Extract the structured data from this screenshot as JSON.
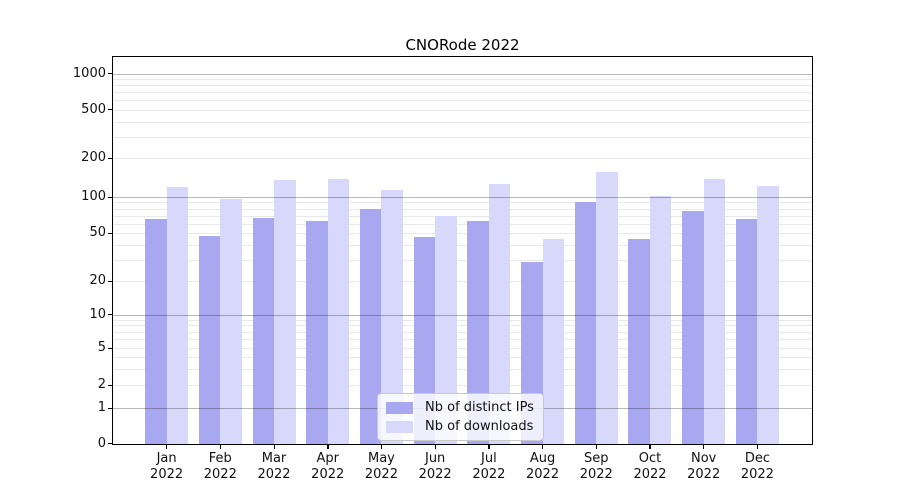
{
  "title": "CNORode 2022",
  "colors": {
    "bar_distinct_ips": "#a8a8f0",
    "bar_downloads": "#d8d8fa",
    "grid_major": "rgba(0,0,0,0.28)",
    "grid_minor": "rgba(0,0,0,0.085)"
  },
  "chart_data": {
    "type": "bar",
    "title": "CNORode 2022",
    "categories": [
      "Jan",
      "Feb",
      "Mar",
      "Apr",
      "May",
      "Jun",
      "Jul",
      "Aug",
      "Sep",
      "Oct",
      "Nov",
      "Dec"
    ],
    "category_year": "2022",
    "series": [
      {
        "name": "Nb of distinct IPs",
        "values": [
          66,
          47,
          67,
          63,
          79,
          46,
          63,
          29,
          90,
          45,
          76,
          66
        ]
      },
      {
        "name": "Nb of downloads",
        "values": [
          119,
          97,
          136,
          139,
          114,
          69,
          127,
          45,
          158,
          101,
          139,
          121
        ]
      }
    ],
    "xlabel": "",
    "ylabel": "",
    "yscale": "symlog",
    "y_ticks": [
      1000,
      500,
      200,
      100,
      50,
      20,
      10,
      5,
      2,
      1,
      0
    ],
    "ylim": [
      0,
      1000
    ],
    "grid": true,
    "legend_position": "lower center"
  }
}
